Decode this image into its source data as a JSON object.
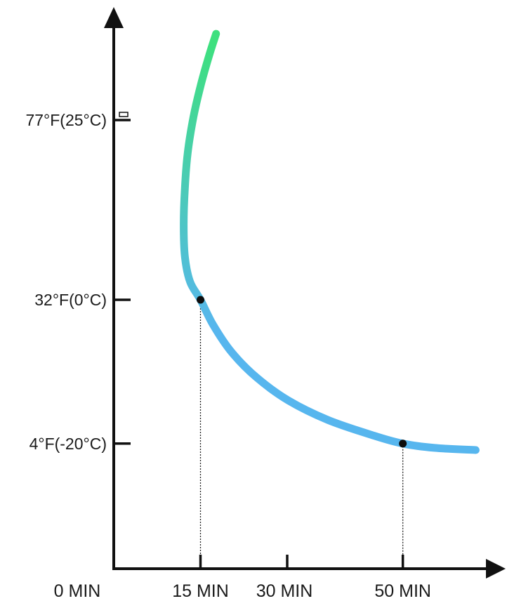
{
  "chart_data": {
    "type": "line",
    "title": "",
    "xlabel": "",
    "ylabel": "",
    "x_ticks": [
      {
        "label": "0 MIN",
        "value": 0
      },
      {
        "label": "15 MIN",
        "value": 15
      },
      {
        "label": "30 MIN",
        "value": 30
      },
      {
        "label": "50 MIN",
        "value": 50
      }
    ],
    "y_ticks": [
      {
        "label": "77°F(25°C)",
        "value": 25
      },
      {
        "label": "32°F(0°C)",
        "value": 0
      },
      {
        "label": "4°F(-20°C)",
        "value": -20
      }
    ],
    "series": [
      {
        "x": [
          17.7,
          16.5,
          15.1,
          13.8,
          12.8,
          12.3,
          12.1,
          12.3,
          13.2,
          15.0,
          17.2,
          20.4,
          24.7,
          30.2,
          37.0,
          45.0,
          50.0,
          55.5,
          62.6
        ],
        "y": [
          37.0,
          34.0,
          30.0,
          25.5,
          20.5,
          15.5,
          10.5,
          6.0,
          2.5,
          0.0,
          -3.5,
          -7.3,
          -10.8,
          -14.0,
          -16.7,
          -18.9,
          -20.0,
          -20.6,
          -20.9
        ],
        "color_start": "#3ee07e",
        "color_end": "#57b6ee"
      }
    ],
    "highlight_points": [
      {
        "x": 15,
        "y": 0
      },
      {
        "x": 50,
        "y": -20
      }
    ],
    "xlim": [
      0,
      64
    ],
    "ylim": [
      -32,
      44
    ],
    "grid": false
  }
}
